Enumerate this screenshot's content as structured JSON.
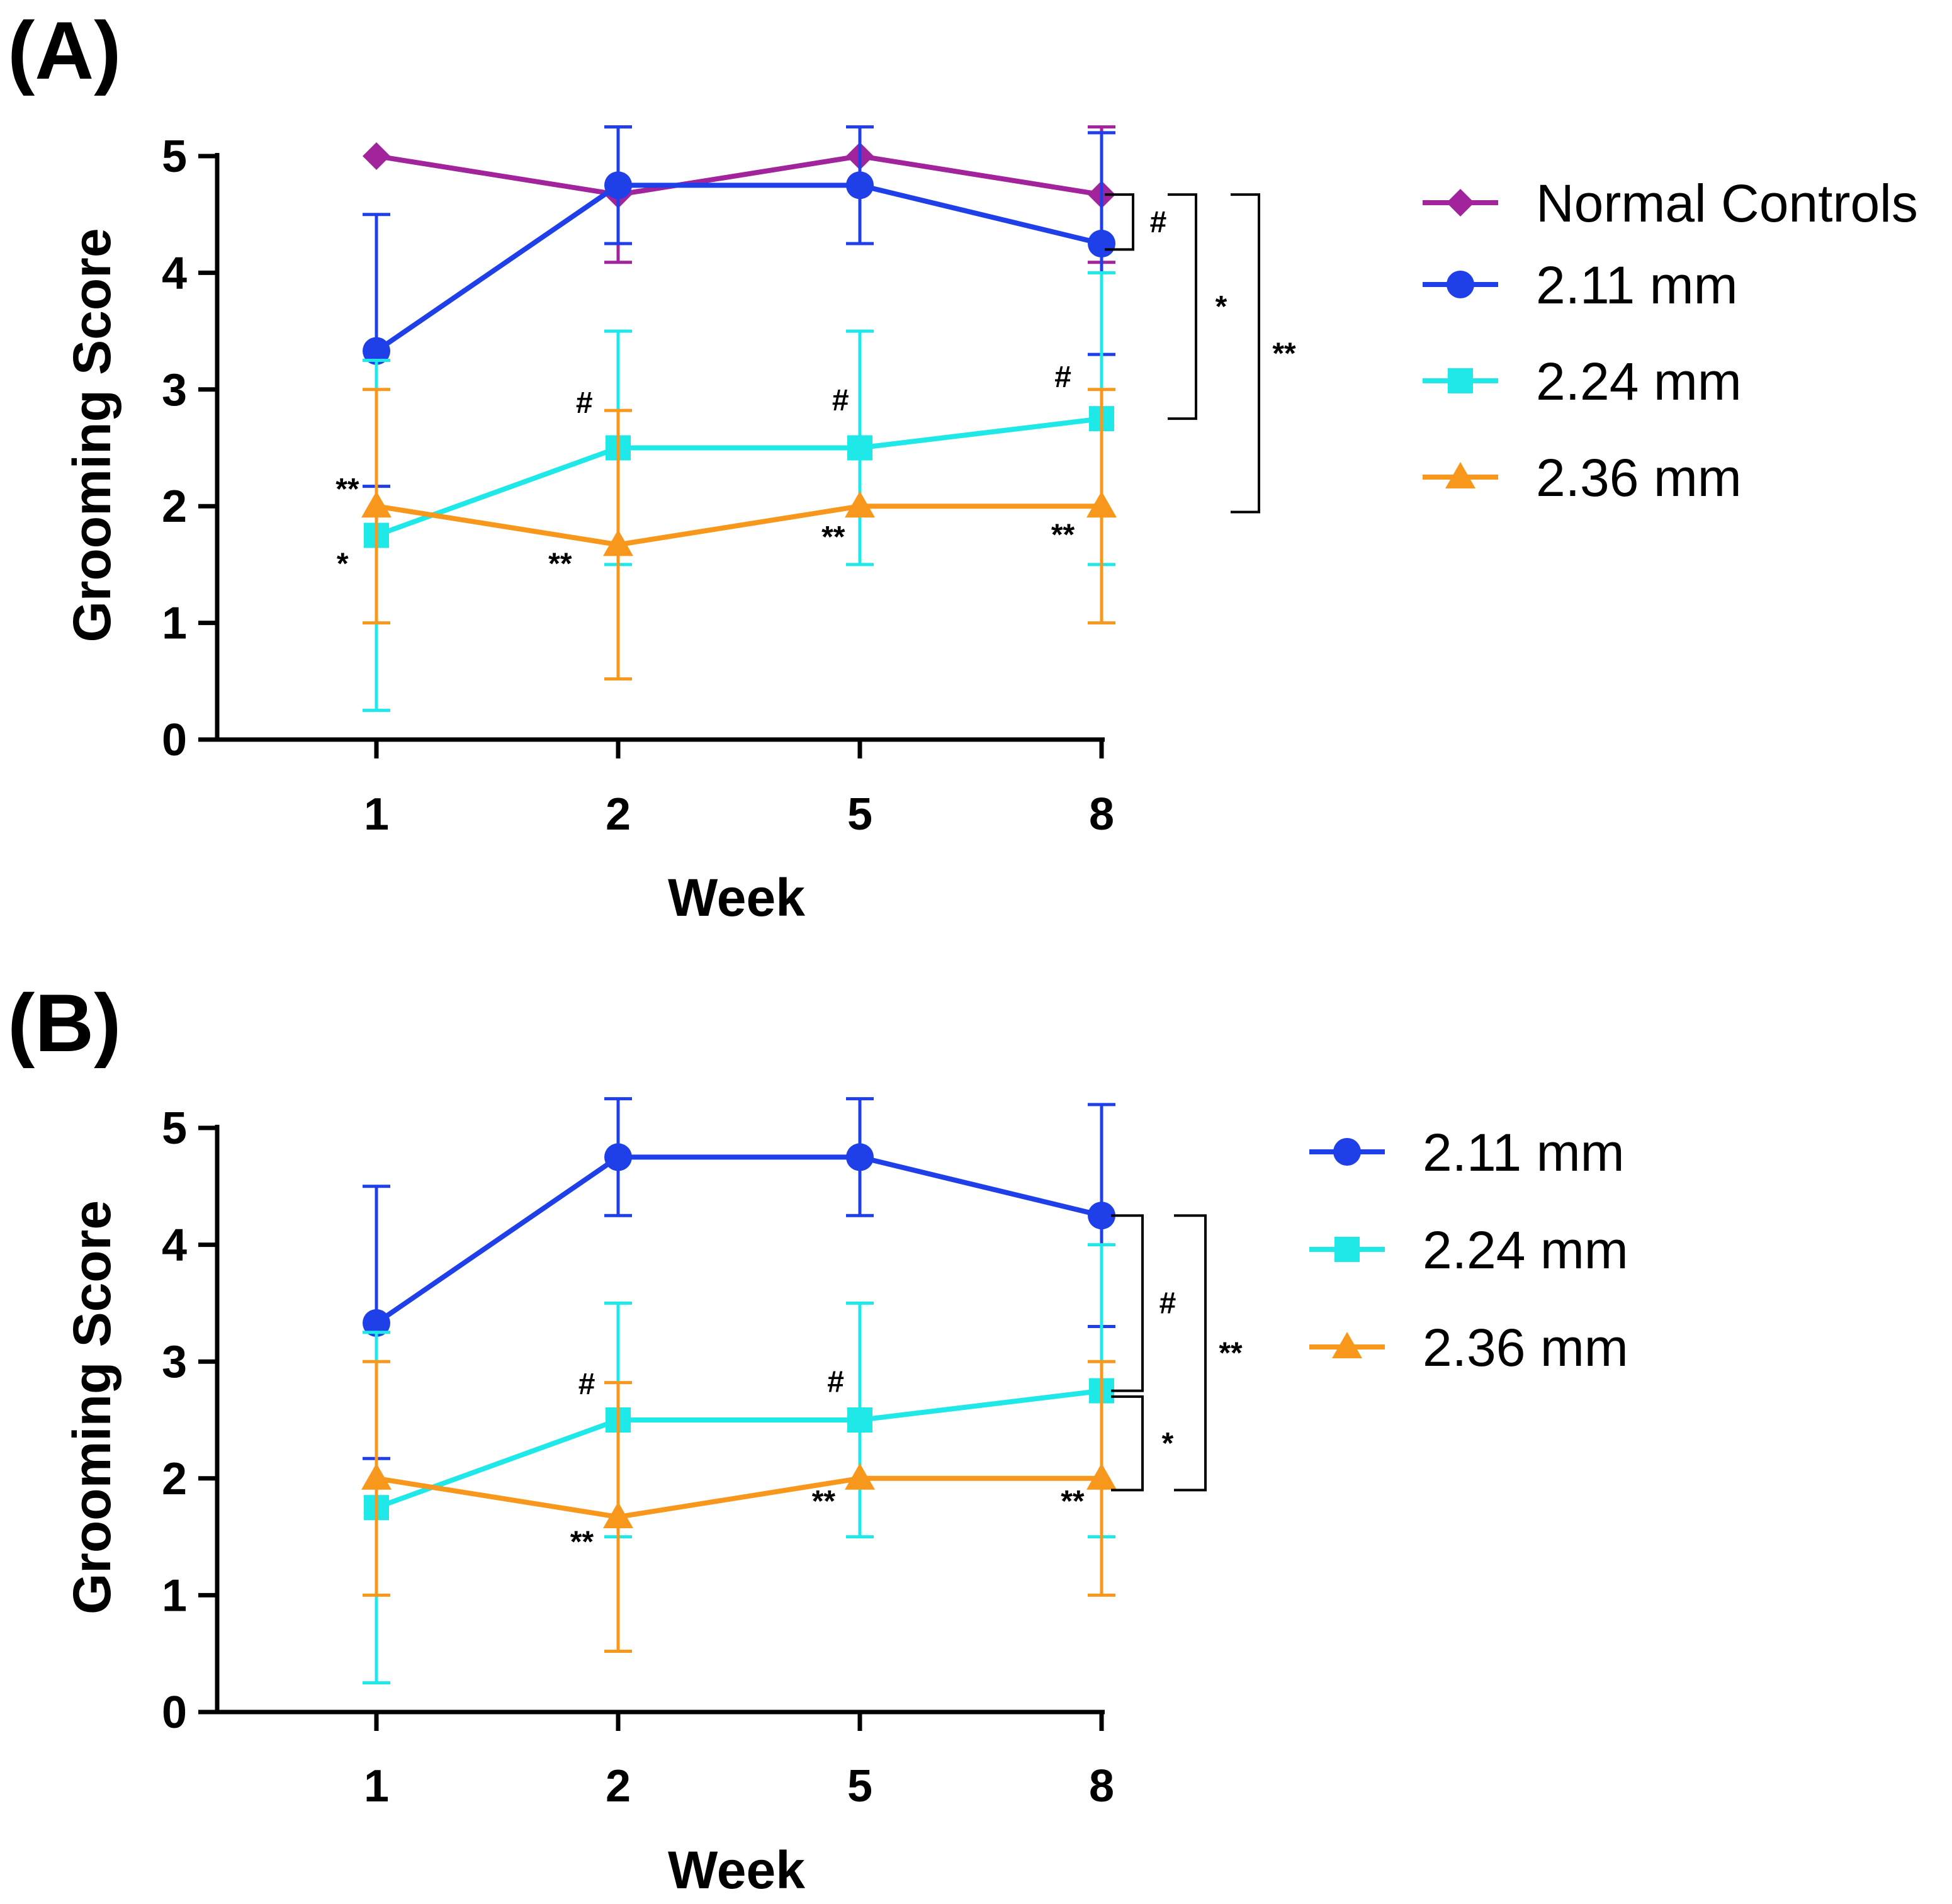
{
  "colors": {
    "normal_controls": "#a1249c",
    "mm_2_11": "#1f3fe8",
    "mm_2_24": "#1ee8e8",
    "mm_2_36": "#f7981d"
  },
  "chart_data": [
    {
      "panel": "(A)",
      "type": "line",
      "xlabel": "Week",
      "ylabel": "Grooming Score",
      "categories": [
        "1",
        "2",
        "5",
        "8"
      ],
      "yticks": [
        "0",
        "1",
        "2",
        "3",
        "4",
        "5"
      ],
      "ylim": [
        0,
        5
      ],
      "legend_position": "right",
      "series": [
        {
          "name": "Normal Controls",
          "color_key": "normal_controls",
          "marker": "diamond",
          "values": [
            5,
            4.67,
            5,
            4.67
          ],
          "err_upper": [
            null,
            5.25,
            null,
            5.25
          ],
          "err_lower": [
            null,
            4.09,
            null,
            4.09
          ]
        },
        {
          "name": "2.11 mm",
          "color_key": "mm_2_11",
          "marker": "circle",
          "values": [
            3.33,
            4.75,
            4.75,
            4.25
          ],
          "err_upper": [
            4.5,
            5.25,
            5.25,
            5.2
          ],
          "err_lower": [
            2.17,
            4.25,
            4.25,
            3.3
          ]
        },
        {
          "name": "2.24 mm",
          "color_key": "mm_2_24",
          "marker": "square",
          "values": [
            1.75,
            2.5,
            2.5,
            2.75
          ],
          "err_upper": [
            3.25,
            3.5,
            3.5,
            4.0
          ],
          "err_lower": [
            0.25,
            1.5,
            1.5,
            1.5
          ]
        },
        {
          "name": "2.36 mm",
          "color_key": "mm_2_36",
          "marker": "triangle",
          "values": [
            2.0,
            1.67,
            2.0,
            2.0
          ],
          "err_upper": [
            3.0,
            2.82,
            null,
            3.0
          ],
          "err_lower": [
            1.0,
            0.52,
            null,
            1.0
          ]
        }
      ],
      "point_annotations": [
        {
          "text": "**",
          "week_index": 0,
          "y": 2.06,
          "dx": -0.12
        },
        {
          "text": "*",
          "week_index": 0,
          "y": 1.42,
          "dx": -0.14
        },
        {
          "text": "#",
          "week_index": 1,
          "y": 2.8,
          "dx": -0.14
        },
        {
          "text": "**",
          "week_index": 1,
          "y": 1.42,
          "dx": -0.24
        },
        {
          "text": "#",
          "week_index": 2,
          "y": 2.82,
          "dx": -0.08
        },
        {
          "text": "**",
          "week_index": 2,
          "y": 1.65,
          "dx": -0.11
        },
        {
          "text": "#",
          "week_index": 3,
          "y": 3.02,
          "dx": -0.16
        },
        {
          "text": "**",
          "week_index": 3,
          "y": 1.67,
          "dx": -0.16
        }
      ],
      "brackets": [
        {
          "label": "#",
          "y_top": 4.67,
          "y_bottom": 4.2,
          "offset": 1
        },
        {
          "label": "*",
          "y_top": 4.67,
          "y_bottom": 2.75,
          "offset": 2
        },
        {
          "label": "**",
          "y_top": 4.67,
          "y_bottom": 1.95,
          "offset": 3
        }
      ]
    },
    {
      "panel": "(B)",
      "type": "line",
      "xlabel": "Week",
      "ylabel": "Grooming Score",
      "categories": [
        "1",
        "2",
        "5",
        "8"
      ],
      "yticks": [
        "0",
        "1",
        "2",
        "3",
        "4",
        "5"
      ],
      "ylim": [
        0,
        5
      ],
      "legend_position": "right",
      "series": [
        {
          "name": "2.11 mm",
          "color_key": "mm_2_11",
          "marker": "circle",
          "values": [
            3.33,
            4.75,
            4.75,
            4.25
          ],
          "err_upper": [
            4.5,
            5.25,
            5.25,
            5.2
          ],
          "err_lower": [
            2.17,
            4.25,
            4.25,
            3.3
          ]
        },
        {
          "name": "2.24 mm",
          "color_key": "mm_2_24",
          "marker": "square",
          "values": [
            1.75,
            2.5,
            2.5,
            2.75
          ],
          "err_upper": [
            3.25,
            3.5,
            3.5,
            4.0
          ],
          "err_lower": [
            0.25,
            1.5,
            1.5,
            1.5
          ]
        },
        {
          "name": "2.36 mm",
          "color_key": "mm_2_36",
          "marker": "triangle",
          "values": [
            2.0,
            1.67,
            2.0,
            2.0
          ],
          "err_upper": [
            3.0,
            2.82,
            null,
            3.0
          ],
          "err_lower": [
            1.0,
            0.52,
            null,
            1.0
          ]
        }
      ],
      "point_annotations": [
        {
          "text": "#",
          "week_index": 1,
          "y": 2.72,
          "dx": -0.13
        },
        {
          "text": "**",
          "week_index": 1,
          "y": 1.37,
          "dx": -0.15
        },
        {
          "text": "#",
          "week_index": 2,
          "y": 2.74,
          "dx": -0.1
        },
        {
          "text": "**",
          "week_index": 2,
          "y": 1.72,
          "dx": -0.15
        },
        {
          "text": "**",
          "week_index": 3,
          "y": 1.72,
          "dx": -0.12
        }
      ],
      "brackets": [
        {
          "label": "#",
          "y_top": 4.25,
          "y_bottom": 2.75,
          "offset": 1
        },
        {
          "label": "*",
          "y_top": 2.7,
          "y_bottom": 1.9,
          "offset": 1
        },
        {
          "label": "**",
          "y_top": 4.25,
          "y_bottom": 1.9,
          "offset": 2
        }
      ]
    }
  ]
}
